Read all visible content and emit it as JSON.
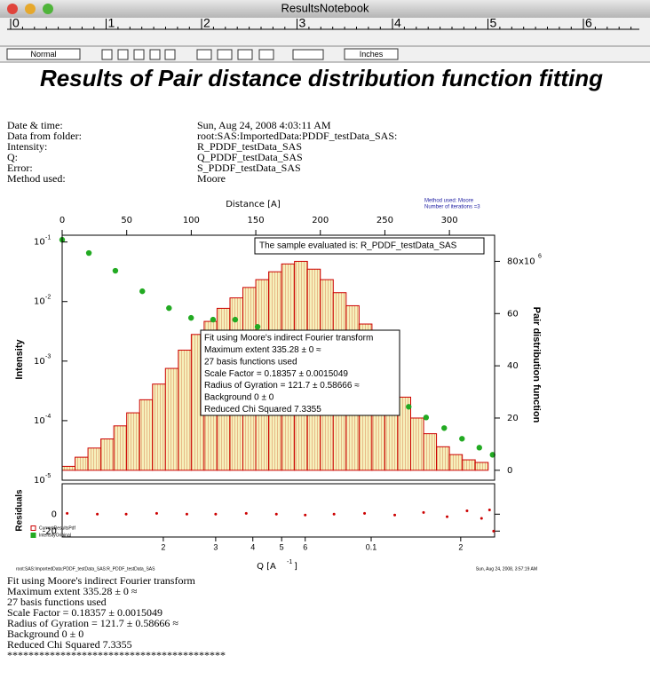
{
  "window": {
    "title": "ResultsNotebook"
  },
  "ruler": {
    "labels": [
      "0",
      "1",
      "2",
      "3",
      "4",
      "5",
      "6"
    ]
  },
  "toolbar": {
    "style": "Normal",
    "units": "Inches"
  },
  "heading": "Results of Pair distance distribution function fitting",
  "info": [
    [
      "Date & time:",
      "Sun, Aug 24, 2008   4:03:11 AM"
    ],
    [
      "Data from folder:",
      "root:SAS:ImportedData:PDDF_testData_SAS:"
    ],
    [
      "Intensity:",
      "R_PDDF_testData_SAS"
    ],
    [
      "Q:",
      "Q_PDDF_testData_SAS"
    ],
    [
      "Error:",
      "S_PDDF_testData_SAS"
    ],
    [
      "Method used:",
      "Moore"
    ]
  ],
  "chart_data": {
    "type": "combo",
    "annotations": [
      "Method used: Moore",
      "Number of iterations =3"
    ],
    "sample_label": "The sample evaluated is:  R_PDDF_testData_SAS",
    "fit_box": [
      "Fit using Moore's indirect Fourier transform",
      "Maximum extent 335.28 ± 0 ≈",
      "27 basis functions used",
      "Scale Factor = 0.18357 ± 0.0015049",
      "Radius of Gyration = 121.7 ± 0.58666 ≈",
      "Background 0 ± 0",
      "Reduced Chi Squared 7.3355"
    ],
    "x2_label": "Distance [A]",
    "x2lim": [
      0,
      335
    ],
    "x2ticks": [
      0,
      50,
      100,
      150,
      200,
      250,
      300
    ],
    "y2_label": "Pair distribution function",
    "y2lim": [
      -3.8,
      90
    ],
    "y2ticks": [
      0,
      20,
      40,
      60,
      80
    ],
    "y2_multiplier": {
      "text": "x10",
      "exp": "6"
    },
    "xlabel": {
      "text": "Q [A",
      "exp": "-1",
      "end": "]"
    },
    "xscale": "log",
    "xlim": [
      0.00914,
      0.26
    ],
    "xticks": [
      {
        "value": 0.02,
        "label": "2"
      },
      {
        "value": 0.03,
        "label": "3"
      },
      {
        "value": 0.04,
        "label": "4"
      },
      {
        "value": 0.05,
        "label": "5"
      },
      {
        "value": 0.06,
        "label": "6"
      },
      0.1,
      {
        "value": 0.2,
        "label": "2"
      }
    ],
    "ylabel": "Intensity",
    "yscale": "log",
    "ylim": [
      1e-05,
      0.13
    ],
    "yticks": [
      {
        "value": 0.1,
        "label": "10",
        "exp": "-1"
      },
      {
        "value": 0.01,
        "label": "10",
        "exp": "-2"
      },
      {
        "value": 0.001,
        "label": "10",
        "exp": "-3"
      },
      {
        "value": 0.0001,
        "label": "10",
        "exp": "-4"
      },
      {
        "value": 1e-05,
        "label": "10",
        "exp": "-5"
      }
    ],
    "series": [
      {
        "name": "CurrentResultsPdf",
        "type": "bar",
        "axis": "y2",
        "color": "#cc0000",
        "x": [
          5,
          15,
          25,
          35,
          45,
          55,
          65,
          75,
          85,
          95,
          105,
          115,
          125,
          135,
          145,
          155,
          165,
          175,
          185,
          195,
          205,
          215,
          225,
          235,
          245,
          255,
          265,
          275,
          285,
          295,
          305,
          315,
          325
        ],
        "values": [
          1.5,
          5,
          8.5,
          12,
          17,
          22,
          27,
          33,
          39,
          46,
          52,
          57,
          62,
          66,
          70,
          73,
          76,
          79,
          80,
          77,
          73,
          68,
          63,
          56,
          46,
          37,
          28,
          20,
          14,
          9,
          6,
          4,
          3
        ]
      },
      {
        "name": "IntensityOriginal",
        "type": "scatter",
        "color": "#22aa22",
        "x": [
          0.00914,
          0.01124,
          0.0138,
          0.017,
          0.0209,
          0.0248,
          0.0294,
          0.0349,
          0.0415,
          0.0585,
          0.0883,
          0.1337,
          0.153,
          0.176,
          0.202,
          0.231,
          0.256
        ],
        "values": [
          0.109,
          0.0653,
          0.0329,
          0.0149,
          0.00776,
          0.00532,
          0.00497,
          0.00497,
          0.00377,
          0.00149,
          0.000532,
          0.000171,
          0.000113,
          7.5e-05,
          4.97e-05,
          3.52e-05,
          2.67e-05
        ]
      }
    ],
    "residuals": {
      "ylabel": "Residuals",
      "ylim": [
        -27,
        36
      ],
      "yticks": [
        -20,
        0
      ],
      "color": "#cc0000",
      "x": [
        0.0095,
        0.012,
        0.015,
        0.019,
        0.024,
        0.03,
        0.038,
        0.048,
        0.06,
        0.075,
        0.095,
        0.12,
        0.15,
        0.18,
        0.21,
        0.235,
        0.25,
        0.258
      ],
      "values": [
        1,
        0,
        0,
        1,
        0,
        0,
        1,
        0,
        -1,
        0,
        1,
        -1,
        2,
        -3,
        4,
        -5,
        5,
        -20
      ]
    },
    "footer_left": "root:SAS:ImportedData:PDDF_testData_SAS:R_PDDF_testData_SAS",
    "footer_right": "Sun, Aug 24, 2008, 3:57:19 AM"
  },
  "results_text": [
    "Fit using Moore's indirect Fourier transform",
    "Maximum extent 335.28 ± 0 ≈",
    "27 basis functions used",
    "Scale Factor = 0.18357 ± 0.0015049",
    "Radius of Gyration = 121.7 ± 0.58666 ≈",
    "Background 0 ± 0",
    "Reduced Chi Squared 7.3355",
    "*****************************************"
  ]
}
